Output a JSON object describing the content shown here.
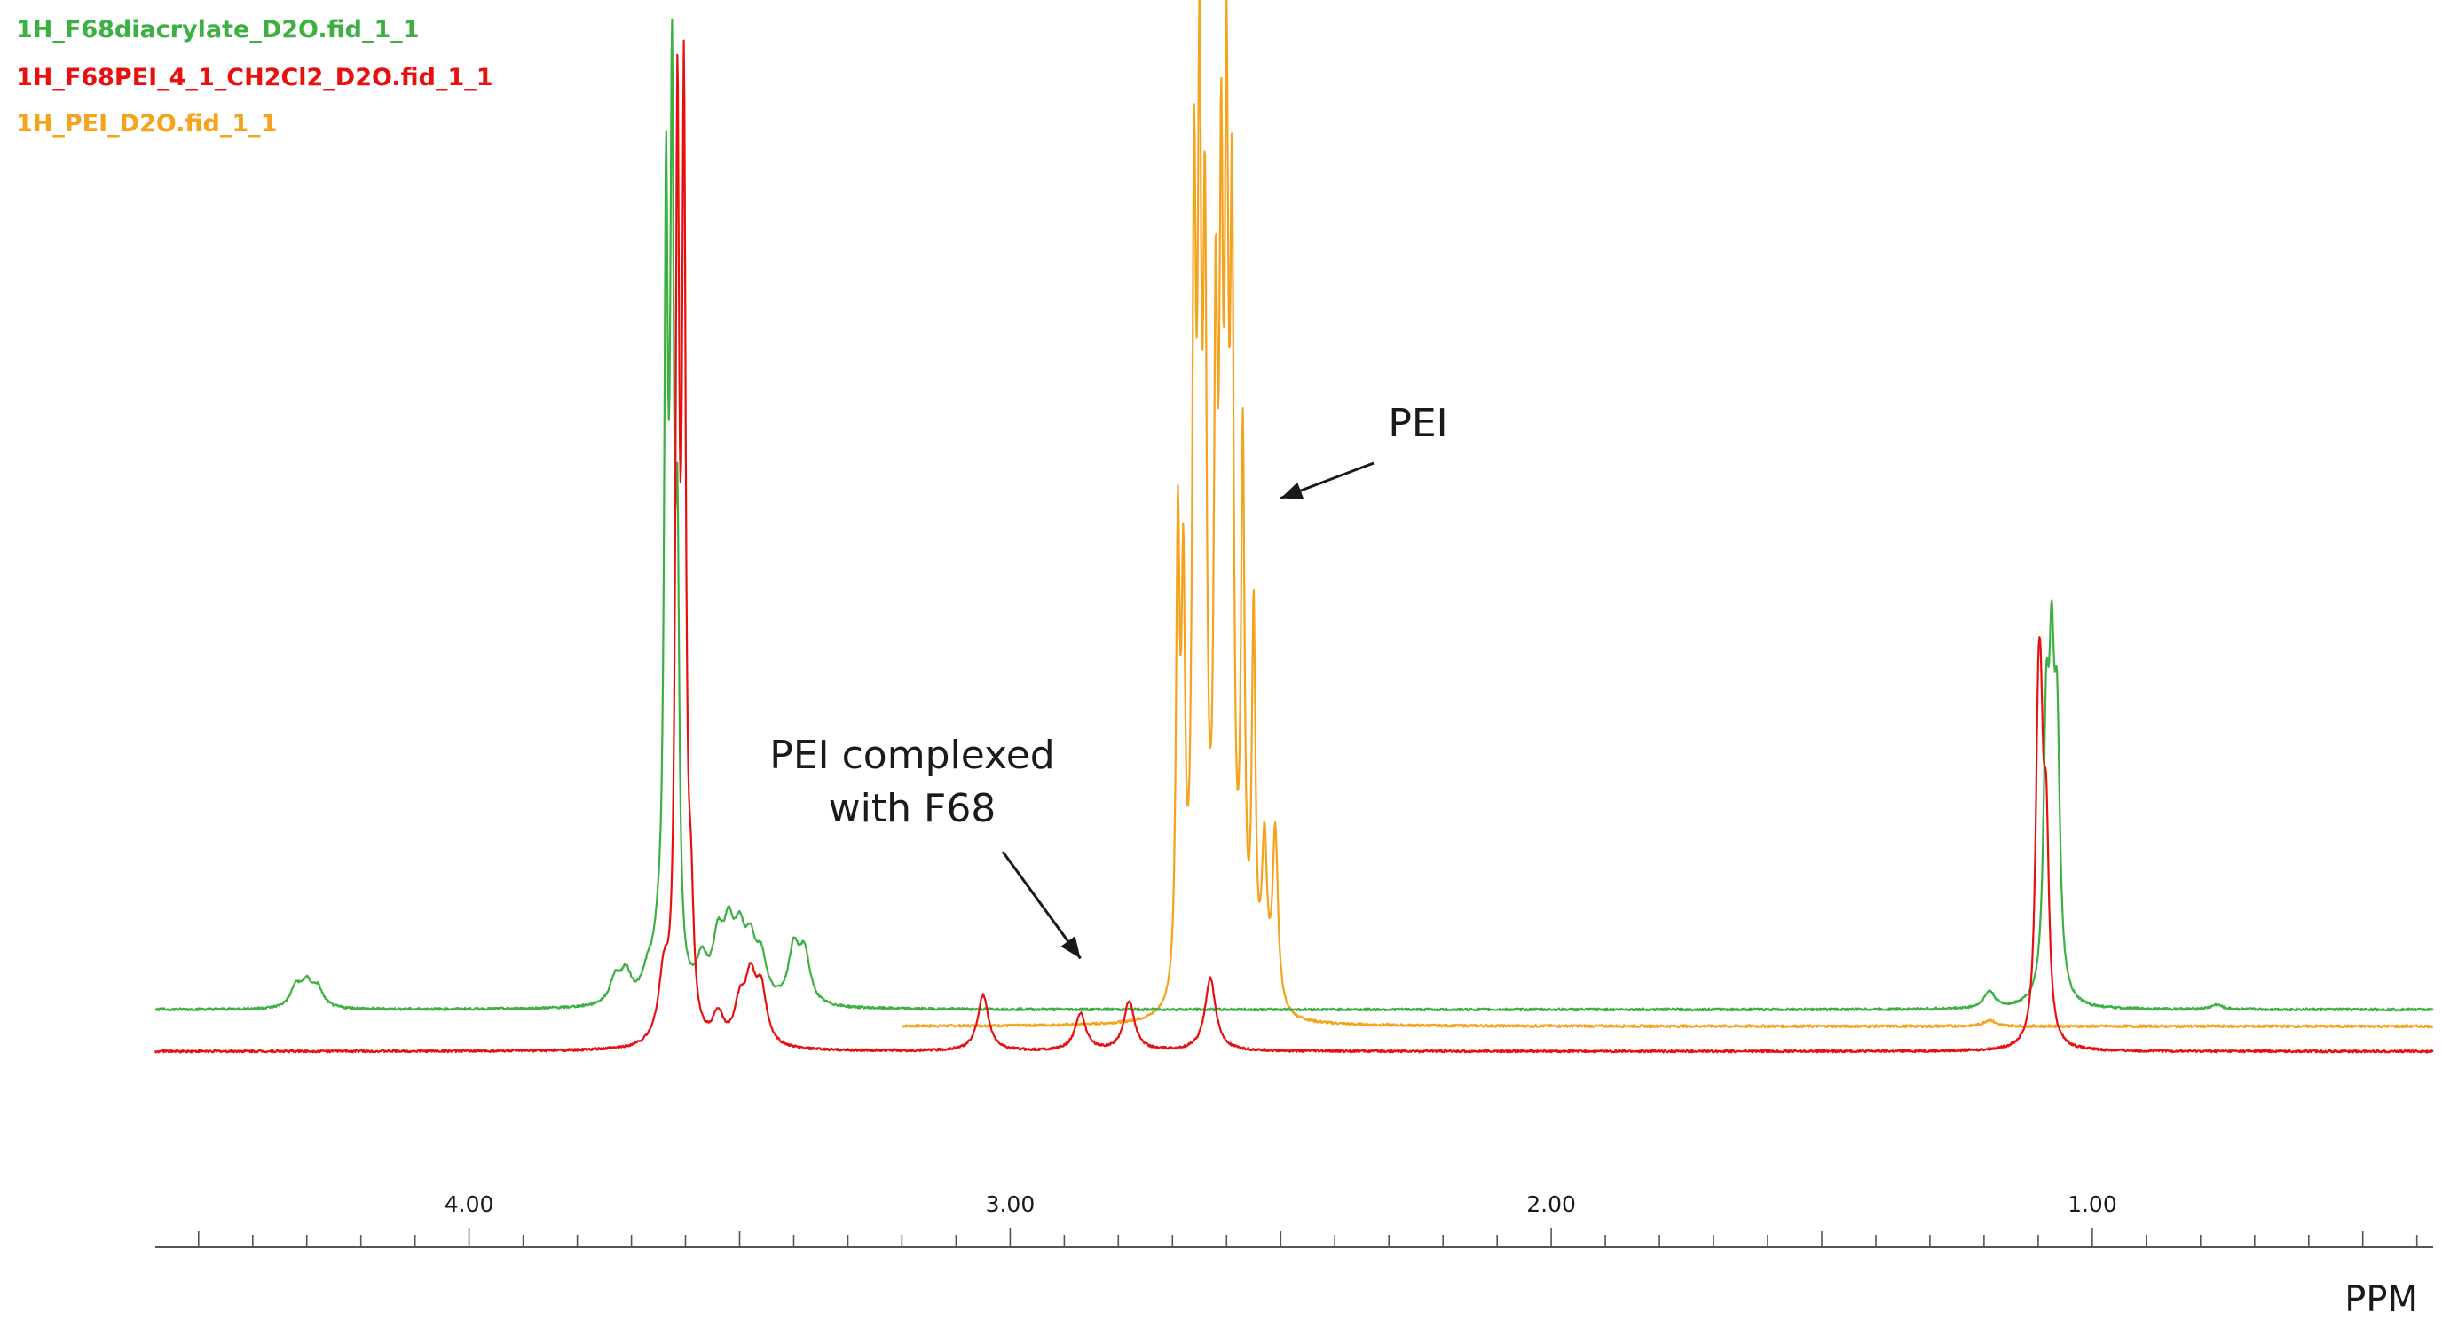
{
  "chart_data": {
    "type": "line",
    "title": "",
    "xlabel": "PPM",
    "ylabel": "",
    "x_reversed": true,
    "xlim": [
      4.58,
      0.37
    ],
    "ylim": [
      0,
      100
    ],
    "grid": false,
    "legend": "top-left",
    "colors": {
      "green": "#3cb043",
      "red": "#e8100f",
      "orange": "#f5a21d",
      "annotation": "#1a1a1a"
    },
    "tick_labels": [
      "4.00",
      "3.00",
      "2.00",
      "1.00"
    ],
    "tick_values": [
      4.0,
      3.0,
      2.0,
      1.0
    ],
    "minor_tick_step": 0.1,
    "annotations": [
      {
        "text_lines": [
          "PEI"
        ],
        "target_ppm": 2.5,
        "target_y": 55
      },
      {
        "text_lines": [
          "PEI complexed",
          "with F68"
        ],
        "target_ppm": 2.87,
        "target_y": 5.5
      }
    ],
    "series": [
      {
        "name": "1H_F68diacrylate_D2O.fid_1_1",
        "color": "#3cb043",
        "baseline": 0,
        "range": [
          4.58,
          0.37
        ],
        "peaks": [
          {
            "x": 4.32,
            "h": 2.2
          },
          {
            "x": 4.3,
            "h": 2.4
          },
          {
            "x": 4.28,
            "h": 2.0
          },
          {
            "x": 3.73,
            "h": 2.7
          },
          {
            "x": 3.71,
            "h": 3.1
          },
          {
            "x": 3.67,
            "h": 2.4
          },
          {
            "x": 3.65,
            "h": 4.3
          },
          {
            "x": 3.636,
            "h": 80
          },
          {
            "x": 3.625,
            "h": 90
          },
          {
            "x": 3.615,
            "h": 42
          },
          {
            "x": 3.57,
            "h": 4.0
          },
          {
            "x": 3.54,
            "h": 6.0
          },
          {
            "x": 3.52,
            "h": 6.6
          },
          {
            "x": 3.5,
            "h": 6.0
          },
          {
            "x": 3.48,
            "h": 5.3
          },
          {
            "x": 3.46,
            "h": 4.3
          },
          {
            "x": 3.4,
            "h": 5.7
          },
          {
            "x": 3.38,
            "h": 5.3
          },
          {
            "x": 1.19,
            "h": 1.8
          },
          {
            "x": 1.085,
            "h": 27
          },
          {
            "x": 1.075,
            "h": 30
          },
          {
            "x": 1.065,
            "h": 26
          },
          {
            "x": 0.77,
            "h": 0.5
          }
        ]
      },
      {
        "name": "1H_F68PEI_4_1_CH2Cl2_D2O.fid_1_1",
        "color": "#e8100f",
        "baseline": -4.5,
        "range": [
          4.58,
          0.37
        ],
        "peaks": [
          {
            "x": 3.64,
            "h": 7.0
          },
          {
            "x": 3.615,
            "h": 96
          },
          {
            "x": 3.603,
            "h": 96
          },
          {
            "x": 3.59,
            "h": 12
          },
          {
            "x": 3.54,
            "h": 3.1
          },
          {
            "x": 3.5,
            "h": 4.0
          },
          {
            "x": 3.48,
            "h": 6.6
          },
          {
            "x": 3.46,
            "h": 5.7
          },
          {
            "x": 3.05,
            "h": 6.0
          },
          {
            "x": 2.87,
            "h": 4.0
          },
          {
            "x": 2.78,
            "h": 5.3
          },
          {
            "x": 2.63,
            "h": 7.8
          },
          {
            "x": 1.1,
            "h": 26
          },
          {
            "x": 1.095,
            "h": 22
          },
          {
            "x": 1.085,
            "h": 20
          }
        ]
      },
      {
        "name": "1H_PEI_D2O.fid_1_1",
        "color": "#f5a21d",
        "baseline": -1.8,
        "range": [
          3.2,
          0.37
        ],
        "peaks": [
          {
            "x": 2.69,
            "h": 49
          },
          {
            "x": 2.68,
            "h": 41
          },
          {
            "x": 2.66,
            "h": 80
          },
          {
            "x": 2.65,
            "h": 87
          },
          {
            "x": 2.64,
            "h": 74
          },
          {
            "x": 2.62,
            "h": 65
          },
          {
            "x": 2.61,
            "h": 75
          },
          {
            "x": 2.6,
            "h": 84
          },
          {
            "x": 2.59,
            "h": 76
          },
          {
            "x": 2.57,
            "h": 58
          },
          {
            "x": 2.55,
            "h": 41
          },
          {
            "x": 2.53,
            "h": 17
          },
          {
            "x": 2.51,
            "h": 19
          },
          {
            "x": 1.19,
            "h": 0.7
          }
        ]
      }
    ]
  }
}
